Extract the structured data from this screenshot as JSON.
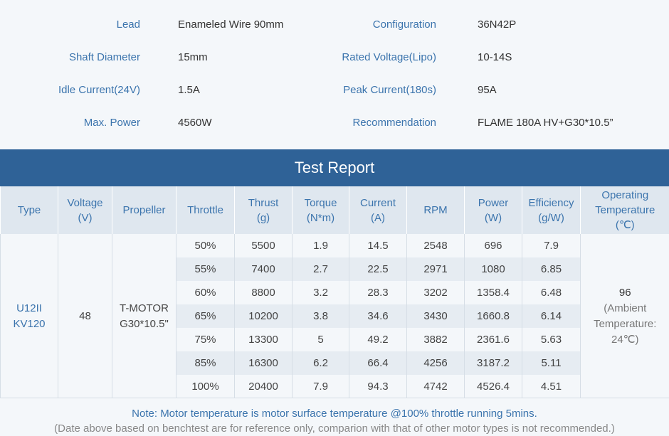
{
  "specs": [
    [
      {
        "label": "Lead",
        "value": "Enameled Wire 90mm"
      },
      {
        "label": "Configuration",
        "value": "36N42P"
      }
    ],
    [
      {
        "label": "Shaft Diameter",
        "value": "15mm"
      },
      {
        "label": "Rated Voltage(Lipo)",
        "value": "10-14S"
      }
    ],
    [
      {
        "label": "Idle Current(24V)",
        "value": "1.5A"
      },
      {
        "label": "Peak Current(180s)",
        "value": "95A"
      }
    ],
    [
      {
        "label": "Max. Power",
        "value": "4560W"
      },
      {
        "label": "Recommendation",
        "value": "FLAME 180A HV+G30*10.5”"
      }
    ]
  ],
  "report": {
    "title": "Test Report",
    "headers": [
      [
        "Type"
      ],
      [
        "Voltage",
        "(V)"
      ],
      [
        "Propeller"
      ],
      [
        "Throttle"
      ],
      [
        "Thrust",
        "(g)"
      ],
      [
        "Torque",
        "(N*m)"
      ],
      [
        "Current",
        "(A)"
      ],
      [
        "RPM"
      ],
      [
        "Power",
        "(W)"
      ],
      [
        "Efficiency",
        "(g/W)"
      ],
      [
        "Operating",
        "Temperature",
        "(℃)"
      ]
    ],
    "type": [
      "U12II",
      "KV120"
    ],
    "voltage": "48",
    "propeller": [
      "T-MOTOR",
      "G30*10.5\""
    ],
    "rows": [
      [
        "50%",
        "5500",
        "1.9",
        "14.5",
        "2548",
        "696",
        "7.9"
      ],
      [
        "55%",
        "7400",
        "2.7",
        "22.5",
        "2971",
        "1080",
        "6.85"
      ],
      [
        "60%",
        "8800",
        "3.2",
        "28.3",
        "3202",
        "1358.4",
        "6.48"
      ],
      [
        "65%",
        "10200",
        "3.8",
        "34.6",
        "3430",
        "1660.8",
        "6.14"
      ],
      [
        "75%",
        "13300",
        "5",
        "49.2",
        "3882",
        "2361.6",
        "5.63"
      ],
      [
        "85%",
        "16300",
        "6.2",
        "66.4",
        "4256",
        "3187.2",
        "5.11"
      ],
      [
        "100%",
        "20400",
        "7.9",
        "94.3",
        "4742",
        "4526.4",
        "4.51"
      ]
    ],
    "temperature": "96",
    "temperature_note": [
      "(Ambient",
      "Temperature:",
      "24℃)"
    ]
  },
  "notes": [
    "Note: Motor temperature is motor surface temperature @100% throttle running 5mins.",
    "(Date above based on benchtest are for reference only, comparion with that of other motor types is not recommended.)"
  ]
}
